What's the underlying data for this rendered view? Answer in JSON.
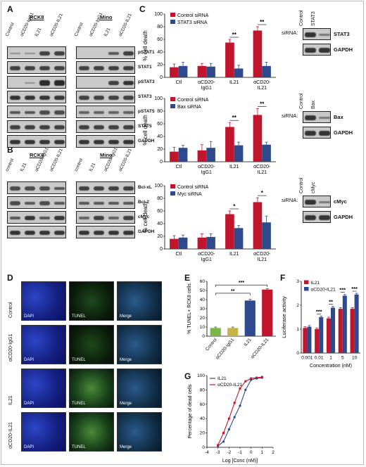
{
  "panels": {
    "A": "A",
    "B": "B",
    "C": "C",
    "D": "D",
    "E": "E",
    "F": "F",
    "G": "G"
  },
  "blots_A": {
    "group_left": "RCK8",
    "group_right": "Mino",
    "lanes": [
      "Control",
      "αCD20-IgG1",
      "IL21",
      "αCD20-IL21"
    ],
    "markers": [
      "pSTAT1",
      "STAT1",
      "pSTAT3",
      "STAT3",
      "pSTAT5",
      "STAT5",
      "GAPDH"
    ]
  },
  "blots_B": {
    "group_left": "RCK8",
    "group_right": "Mino",
    "lanes": [
      "control",
      "IL21",
      "αCD20-IgG1",
      "αCD20-IL21"
    ],
    "markers": [
      "Bcl-xL",
      "Bcl-2",
      "cMyc",
      "GAPDH"
    ]
  },
  "side_blots": [
    {
      "prefix": "siRNA:",
      "lanes": [
        "Control",
        "STAT3"
      ],
      "markers": [
        "STAT3",
        "GAPDH"
      ]
    },
    {
      "prefix": "siRNA:",
      "lanes": [
        "Control",
        "Bax"
      ],
      "markers": [
        "Bax",
        "GAPDH"
      ]
    },
    {
      "prefix": "siRNA:",
      "lanes": [
        "Control",
        "cMyc"
      ],
      "markers": [
        "cMyc",
        "GAPDH"
      ]
    }
  ],
  "micro_D": {
    "rows": [
      "Control",
      "αCD20-IgG1",
      "IL21",
      "αCD20-IL21"
    ],
    "cols": [
      "DAPI",
      "TUNEL",
      "Merge"
    ]
  },
  "colors": {
    "red": "#c0152d",
    "blue": "#2e4a8c",
    "green": "#7ab648",
    "olive": "#c8b445",
    "blot_bg": "#c9c9c9"
  },
  "chart_data": [
    {
      "type": "bar",
      "panel": "C1",
      "ylabel": "% cell death",
      "ylim": [
        0,
        100
      ],
      "yticks": [
        0,
        20,
        40,
        60,
        80,
        100
      ],
      "categories": [
        "Ctl",
        "αCD20-IgG1",
        "IL21",
        "αCD20-IL21"
      ],
      "category_lines": [
        [
          "Ctl"
        ],
        [
          "αCD20-",
          "IgG1"
        ],
        [
          "IL21"
        ],
        [
          "αCD20-",
          "IL21"
        ]
      ],
      "series": [
        {
          "name": "Control siRNA",
          "values": [
            16,
            18,
            55,
            74
          ],
          "errors": [
            5,
            4,
            5,
            6
          ]
        },
        {
          "name": "STAT3 siRNA",
          "values": [
            18,
            17,
            14,
            18
          ],
          "errors": [
            6,
            5,
            5,
            6
          ]
        }
      ],
      "significance": [
        {
          "category": 2,
          "label": "**"
        },
        {
          "category": 3,
          "label": "**"
        }
      ],
      "legend": "top-left"
    },
    {
      "type": "bar",
      "panel": "C2",
      "ylabel": "% cell death",
      "ylim": [
        0,
        100
      ],
      "yticks": [
        0,
        20,
        40,
        60,
        80,
        100
      ],
      "categories": [
        "Ctl",
        "αCD20-IgG1",
        "IL21",
        "αCD20-IL21"
      ],
      "category_lines": [
        [
          "Ctl"
        ],
        [
          "αCD20-",
          "IgG1"
        ],
        [
          "IL21"
        ],
        [
          "αCD20-",
          "IL21"
        ]
      ],
      "series": [
        {
          "name": "Control siRNA",
          "values": [
            16,
            18,
            55,
            74
          ],
          "errors": [
            7,
            9,
            7,
            10
          ]
        },
        {
          "name": "Bax siRNA",
          "values": [
            22,
            22,
            26,
            27
          ],
          "errors": [
            4,
            10,
            5,
            4
          ]
        }
      ],
      "significance": [
        {
          "category": 2,
          "label": "**"
        },
        {
          "category": 3,
          "label": "**"
        }
      ],
      "legend": "top-left"
    },
    {
      "type": "bar",
      "panel": "C3",
      "ylabel": "% cell death",
      "ylim": [
        0,
        100
      ],
      "yticks": [
        0,
        20,
        40,
        60,
        80,
        100
      ],
      "categories": [
        "Ctl",
        "αCD20-IgG1",
        "IL21",
        "αCD20-IL21"
      ],
      "category_lines": [
        [
          "Ctl"
        ],
        [
          "αCD20-",
          "IgG1"
        ],
        [
          "IL21"
        ],
        [
          "αCD20-",
          "IL21"
        ]
      ],
      "series": [
        {
          "name": "Control siRNA",
          "values": [
            16,
            18,
            55,
            74
          ],
          "errors": [
            5,
            6,
            5,
            7
          ]
        },
        {
          "name": "Myc siRNA",
          "values": [
            18,
            19,
            33,
            42
          ],
          "errors": [
            4,
            5,
            4,
            10
          ]
        }
      ],
      "significance": [
        {
          "category": 2,
          "label": "*"
        },
        {
          "category": 3,
          "label": "*"
        }
      ],
      "legend": "top-left"
    },
    {
      "type": "bar",
      "panel": "E",
      "ylabel": "% TUNEL+ RCK8 cells",
      "ylim": [
        0,
        60
      ],
      "yticks": [
        0,
        10,
        20,
        30,
        40,
        50,
        60
      ],
      "categories": [
        "Control",
        "αCD20-IgG1",
        "IL21",
        "αCD20-IL21"
      ],
      "values": [
        9,
        9,
        39,
        51
      ],
      "errors": [
        1,
        1,
        1.5,
        1
      ],
      "bar_colors": [
        "#7ab648",
        "#c8b445",
        "#2e4a8c",
        "#c0152d"
      ],
      "significance": [
        {
          "from": 0,
          "to": 2,
          "label": "**"
        },
        {
          "from": 0,
          "to": 3,
          "label": "***"
        }
      ]
    },
    {
      "type": "bar",
      "panel": "F",
      "ylabel": "Luciferase activity",
      "xlabel": "Concentration (nM)",
      "ylim": [
        0,
        3
      ],
      "yticks": [
        0,
        1,
        2,
        3
      ],
      "categories": [
        "0.001",
        "0.01",
        "1",
        "5",
        "10"
      ],
      "series": [
        {
          "name": "IL21",
          "values": [
            1.05,
            1.0,
            1.45,
            1.85,
            1.85
          ],
          "errors": [
            0.05,
            0.05,
            0.05,
            0.05,
            0.05
          ]
        },
        {
          "name": "αCD20-IL21",
          "values": [
            1.1,
            1.5,
            1.9,
            2.4,
            2.45
          ],
          "errors": [
            0.05,
            0.05,
            0.05,
            0.05,
            0.05
          ]
        }
      ],
      "significance": [
        {
          "category": 1,
          "label": "***"
        },
        {
          "category": 2,
          "label": "**"
        },
        {
          "category": 3,
          "label": "***"
        },
        {
          "category": 4,
          "label": "***"
        }
      ],
      "legend": "top-left"
    },
    {
      "type": "line",
      "panel": "G",
      "ylabel": "Percentage of dead cells",
      "xlabel": "Log [Conc (nM)]",
      "xlim": [
        -4,
        2
      ],
      "ylim": [
        0,
        100
      ],
      "xticks": [
        -4,
        -3,
        -2,
        -1,
        0,
        1,
        2
      ],
      "yticks": [
        0,
        20,
        40,
        60,
        80,
        100
      ],
      "series": [
        {
          "name": "IL21",
          "color": "#2e4a8c",
          "x": [
            -3,
            -2.5,
            -2,
            -1.5,
            -1,
            -0.5,
            0,
            0.5,
            1
          ],
          "y": [
            2,
            8,
            25,
            42,
            58,
            80,
            94,
            96,
            97
          ]
        },
        {
          "name": "αCD20-IL21",
          "color": "#c0152d",
          "x": [
            -3,
            -2.5,
            -2,
            -1.5,
            -1,
            -0.5,
            0,
            0.5,
            1
          ],
          "y": [
            3,
            20,
            40,
            62,
            82,
            92,
            96,
            97,
            98
          ]
        }
      ],
      "legend": "top-left"
    }
  ]
}
